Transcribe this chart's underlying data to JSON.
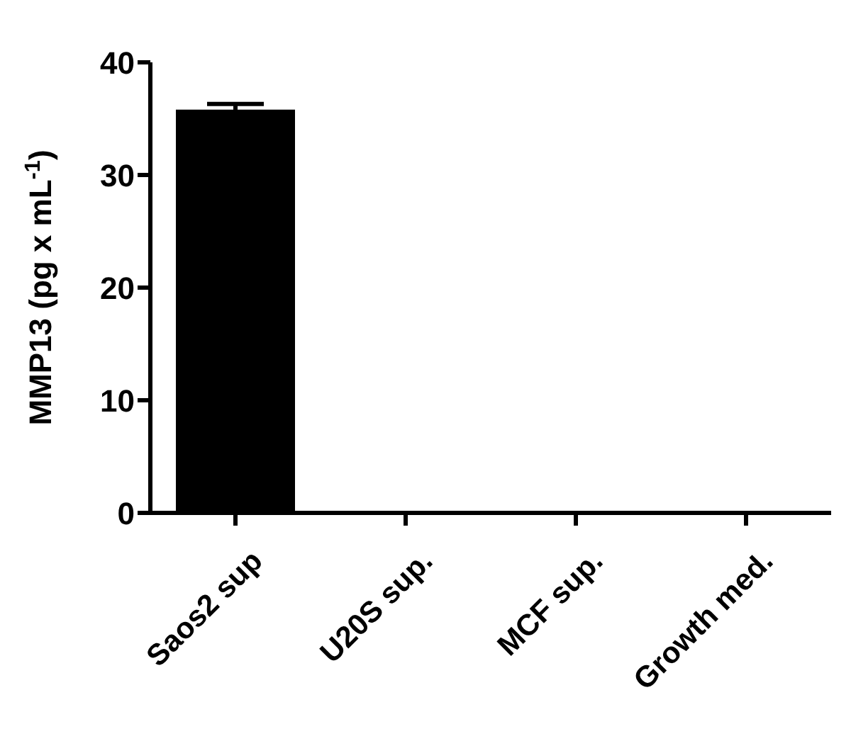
{
  "chart_data": {
    "type": "bar",
    "ylabel": "MMP13 (pg x mL$^{-1}$)",
    "categories": [
      "Saos2 sup",
      "U20S sup.",
      "MCF sup.",
      "Growth med."
    ],
    "values": [
      35.8,
      0,
      0,
      0
    ],
    "errors": [
      0.5,
      null,
      null,
      null
    ],
    "color": "#000000",
    "ylim": [
      0,
      40
    ],
    "yticks": [
      0,
      10,
      20,
      30,
      40
    ]
  }
}
